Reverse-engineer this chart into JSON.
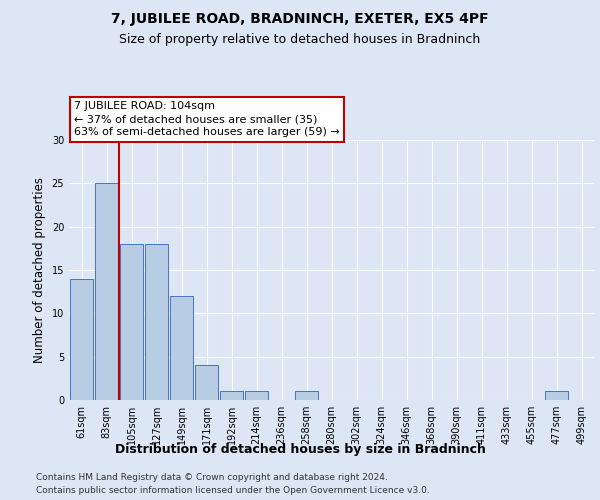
{
  "title": "7, JUBILEE ROAD, BRADNINCH, EXETER, EX5 4PF",
  "subtitle": "Size of property relative to detached houses in Bradninch",
  "xlabel": "Distribution of detached houses by size in Bradninch",
  "ylabel": "Number of detached properties",
  "categories": [
    "61sqm",
    "83sqm",
    "105sqm",
    "127sqm",
    "149sqm",
    "171sqm",
    "192sqm",
    "214sqm",
    "236sqm",
    "258sqm",
    "280sqm",
    "302sqm",
    "324sqm",
    "346sqm",
    "368sqm",
    "390sqm",
    "411sqm",
    "433sqm",
    "455sqm",
    "477sqm",
    "499sqm"
  ],
  "values": [
    14,
    25,
    18,
    18,
    12,
    4,
    1,
    1,
    0,
    1,
    0,
    0,
    0,
    0,
    0,
    0,
    0,
    0,
    0,
    1,
    0
  ],
  "bar_color": "#b8cce4",
  "bar_edge_color": "#4472c4",
  "vline_after_bar": 1,
  "vline_color": "#c00000",
  "ylim": [
    0,
    30
  ],
  "yticks": [
    0,
    5,
    10,
    15,
    20,
    25,
    30
  ],
  "annotation_text": "7 JUBILEE ROAD: 104sqm\n← 37% of detached houses are smaller (35)\n63% of semi-detached houses are larger (59) →",
  "annotation_box_color": "#c00000",
  "footer1": "Contains HM Land Registry data © Crown copyright and database right 2024.",
  "footer2": "Contains public sector information licensed under the Open Government Licence v3.0.",
  "background_color": "#dce6f5",
  "plot_bg_color": "#dce6f5",
  "title_fontsize": 10,
  "subtitle_fontsize": 9,
  "ylabel_fontsize": 8.5,
  "xlabel_fontsize": 9,
  "tick_fontsize": 7,
  "annotation_fontsize": 8,
  "footer_fontsize": 6.5,
  "grid_color": "#ffffff"
}
